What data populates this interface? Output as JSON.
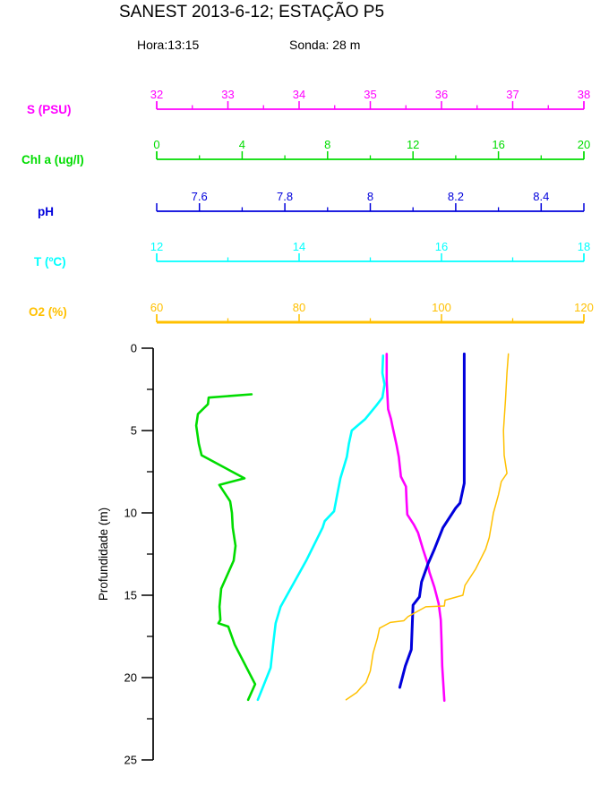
{
  "header": {
    "title": "SANEST 2013-6-12; ESTAÇÃO P5",
    "hora": "Hora:13:15",
    "sonda": "Sonda: 28 m"
  },
  "chart_data": {
    "type": "line",
    "title": "SANEST 2013-6-12; ESTAÇÃO P5",
    "annotations": [
      "Hora:13:15",
      "Sonda: 28 m"
    ],
    "description": "Vertical water-column profiles: five parameters plotted against depth, each with its own colored top axis",
    "grid": false,
    "legend": "none",
    "depth_axis": {
      "label": "Profundidade (m)",
      "min": 0,
      "max": 25,
      "major_ticks": [
        0,
        5,
        10,
        15,
        20,
        25
      ],
      "major_labels": [
        "0",
        "5",
        "10",
        "15",
        "20",
        "25"
      ],
      "minor_ticks": [
        2.5,
        7.5,
        12.5,
        17.5,
        22.5
      ],
      "color": "#000000"
    },
    "axes": [
      {
        "id": "salinity",
        "label": "S (PSU)",
        "color": "#FF00FF",
        "min": 32,
        "max": 38,
        "major_ticks": [
          32,
          33,
          34,
          35,
          36,
          37,
          38
        ],
        "major_labels": [
          "32",
          "33",
          "34",
          "35",
          "36",
          "37",
          "38"
        ],
        "minor_ticks": [
          32.5,
          33.5,
          34.5,
          35.5,
          36.5,
          37.5
        ]
      },
      {
        "id": "chlorophyll",
        "label": "Chl a (ug/l)",
        "color": "#00DC00",
        "min": 0,
        "max": 20,
        "major_ticks": [
          0,
          4,
          8,
          12,
          16,
          20
        ],
        "major_labels": [
          "0",
          "4",
          "8",
          "12",
          "16",
          "20"
        ],
        "minor_ticks": [
          2,
          6,
          10,
          14,
          18
        ]
      },
      {
        "id": "ph",
        "label": "pH",
        "color": "#0000DC",
        "min": 7.5,
        "max": 8.5,
        "major_ticks": [
          7.6,
          7.8,
          8.0,
          8.2,
          8.4
        ],
        "major_labels": [
          "7.6",
          "7.8",
          "8",
          "8.2",
          "8.4"
        ],
        "minor_ticks": [
          7.7,
          7.9,
          8.1,
          8.3
        ]
      },
      {
        "id": "temperature",
        "label": "T (ºC)",
        "color": "#00FFFF",
        "min": 12,
        "max": 18,
        "major_ticks": [
          12,
          14,
          16,
          18
        ],
        "major_labels": [
          "12",
          "14",
          "16",
          "18"
        ],
        "minor_ticks": [
          13,
          15,
          17
        ]
      },
      {
        "id": "oxygen",
        "label": "O2 (%)",
        "color": "#FFC000",
        "min": 60,
        "max": 120,
        "major_ticks": [
          60,
          80,
          100,
          120
        ],
        "major_labels": [
          "60",
          "80",
          "100",
          "120"
        ],
        "minor_ticks": [
          70,
          90,
          110
        ]
      }
    ],
    "series": [
      {
        "axis": "salinity",
        "units": "PSU",
        "points_format": "[value, depth_m]",
        "points": [
          [
            35.23,
            0.35
          ],
          [
            35.23,
            2.0
          ],
          [
            35.25,
            3.7
          ],
          [
            35.29,
            4.3
          ],
          [
            35.31,
            4.7
          ],
          [
            35.37,
            5.9
          ],
          [
            35.4,
            6.6
          ],
          [
            35.43,
            7.8
          ],
          [
            35.5,
            8.4
          ],
          [
            35.51,
            9.3
          ],
          [
            35.52,
            10.1
          ],
          [
            35.61,
            10.7
          ],
          [
            35.67,
            11.2
          ],
          [
            35.74,
            12.2
          ],
          [
            35.8,
            13.0
          ],
          [
            35.83,
            13.6
          ],
          [
            35.9,
            14.5
          ],
          [
            35.96,
            15.5
          ],
          [
            35.99,
            16.5
          ],
          [
            36.0,
            17.7
          ],
          [
            36.01,
            19.3
          ],
          [
            36.04,
            21.4
          ]
        ]
      },
      {
        "axis": "chlorophyll",
        "units": "ug/l",
        "points_format": "[value, depth_m]",
        "points": [
          [
            4.44,
            2.8
          ],
          [
            2.43,
            3.0
          ],
          [
            2.4,
            3.4
          ],
          [
            1.93,
            4.0
          ],
          [
            1.85,
            4.7
          ],
          [
            1.97,
            5.8
          ],
          [
            2.1,
            6.5
          ],
          [
            4.11,
            7.9
          ],
          [
            2.93,
            8.3
          ],
          [
            3.44,
            9.3
          ],
          [
            3.52,
            10.0
          ],
          [
            3.56,
            10.9
          ],
          [
            3.69,
            12.0
          ],
          [
            3.6,
            12.9
          ],
          [
            3.02,
            14.6
          ],
          [
            2.94,
            15.7
          ],
          [
            2.98,
            16.5
          ],
          [
            2.89,
            16.7
          ],
          [
            3.35,
            16.9
          ],
          [
            3.65,
            18.0
          ],
          [
            4.61,
            20.4
          ],
          [
            4.28,
            21.35
          ]
        ]
      },
      {
        "axis": "ph",
        "units": "",
        "points_format": "[value, depth_m]",
        "points": [
          [
            8.22,
            0.35
          ],
          [
            8.22,
            8.2
          ],
          [
            8.21,
            9.4
          ],
          [
            8.2,
            9.7
          ],
          [
            8.17,
            10.9
          ],
          [
            8.15,
            12.2
          ],
          [
            8.135,
            13.1
          ],
          [
            8.12,
            14.2
          ],
          [
            8.115,
            15.1
          ],
          [
            8.1,
            15.6
          ],
          [
            8.096,
            18.3
          ],
          [
            8.082,
            19.3
          ],
          [
            8.069,
            20.6
          ]
        ]
      },
      {
        "axis": "temperature",
        "units": "ºC",
        "points_format": "[value, depth_m]",
        "points": [
          [
            15.18,
            0.45
          ],
          [
            15.17,
            1.5
          ],
          [
            15.2,
            2.2
          ],
          [
            15.17,
            3.0
          ],
          [
            15.08,
            3.5
          ],
          [
            14.93,
            4.3
          ],
          [
            14.74,
            5.0
          ],
          [
            14.7,
            5.8
          ],
          [
            14.67,
            6.6
          ],
          [
            14.58,
            7.9
          ],
          [
            14.54,
            8.8
          ],
          [
            14.49,
            9.9
          ],
          [
            14.36,
            10.5
          ],
          [
            14.33,
            10.9
          ],
          [
            14.1,
            12.9
          ],
          [
            13.92,
            14.3
          ],
          [
            13.74,
            15.7
          ],
          [
            13.67,
            16.7
          ],
          [
            13.64,
            17.8
          ],
          [
            13.6,
            19.4
          ],
          [
            13.48,
            20.7
          ],
          [
            13.42,
            21.35
          ]
        ]
      },
      {
        "axis": "oxygen",
        "units": "%",
        "points_format": "[value, depth_m]",
        "points": [
          [
            109.4,
            0.35
          ],
          [
            109.2,
            1.5
          ],
          [
            109.0,
            3.1
          ],
          [
            108.7,
            5.0
          ],
          [
            108.8,
            6.5
          ],
          [
            109.2,
            7.6
          ],
          [
            108.4,
            8.1
          ],
          [
            108.0,
            8.9
          ],
          [
            107.3,
            10.0
          ],
          [
            106.7,
            11.5
          ],
          [
            106.2,
            12.2
          ],
          [
            104.8,
            13.4
          ],
          [
            103.3,
            14.4
          ],
          [
            103.0,
            15.0
          ],
          [
            100.5,
            15.3
          ],
          [
            100.4,
            15.65
          ],
          [
            97.8,
            15.7
          ],
          [
            95.3,
            16.3
          ],
          [
            94.7,
            16.55
          ],
          [
            92.8,
            16.65
          ],
          [
            91.3,
            17.0
          ],
          [
            91.0,
            17.6
          ],
          [
            90.4,
            18.5
          ],
          [
            90.0,
            19.6
          ],
          [
            89.4,
            20.3
          ],
          [
            88.7,
            20.6
          ],
          [
            88.1,
            20.9
          ],
          [
            86.6,
            21.35
          ]
        ]
      }
    ]
  }
}
